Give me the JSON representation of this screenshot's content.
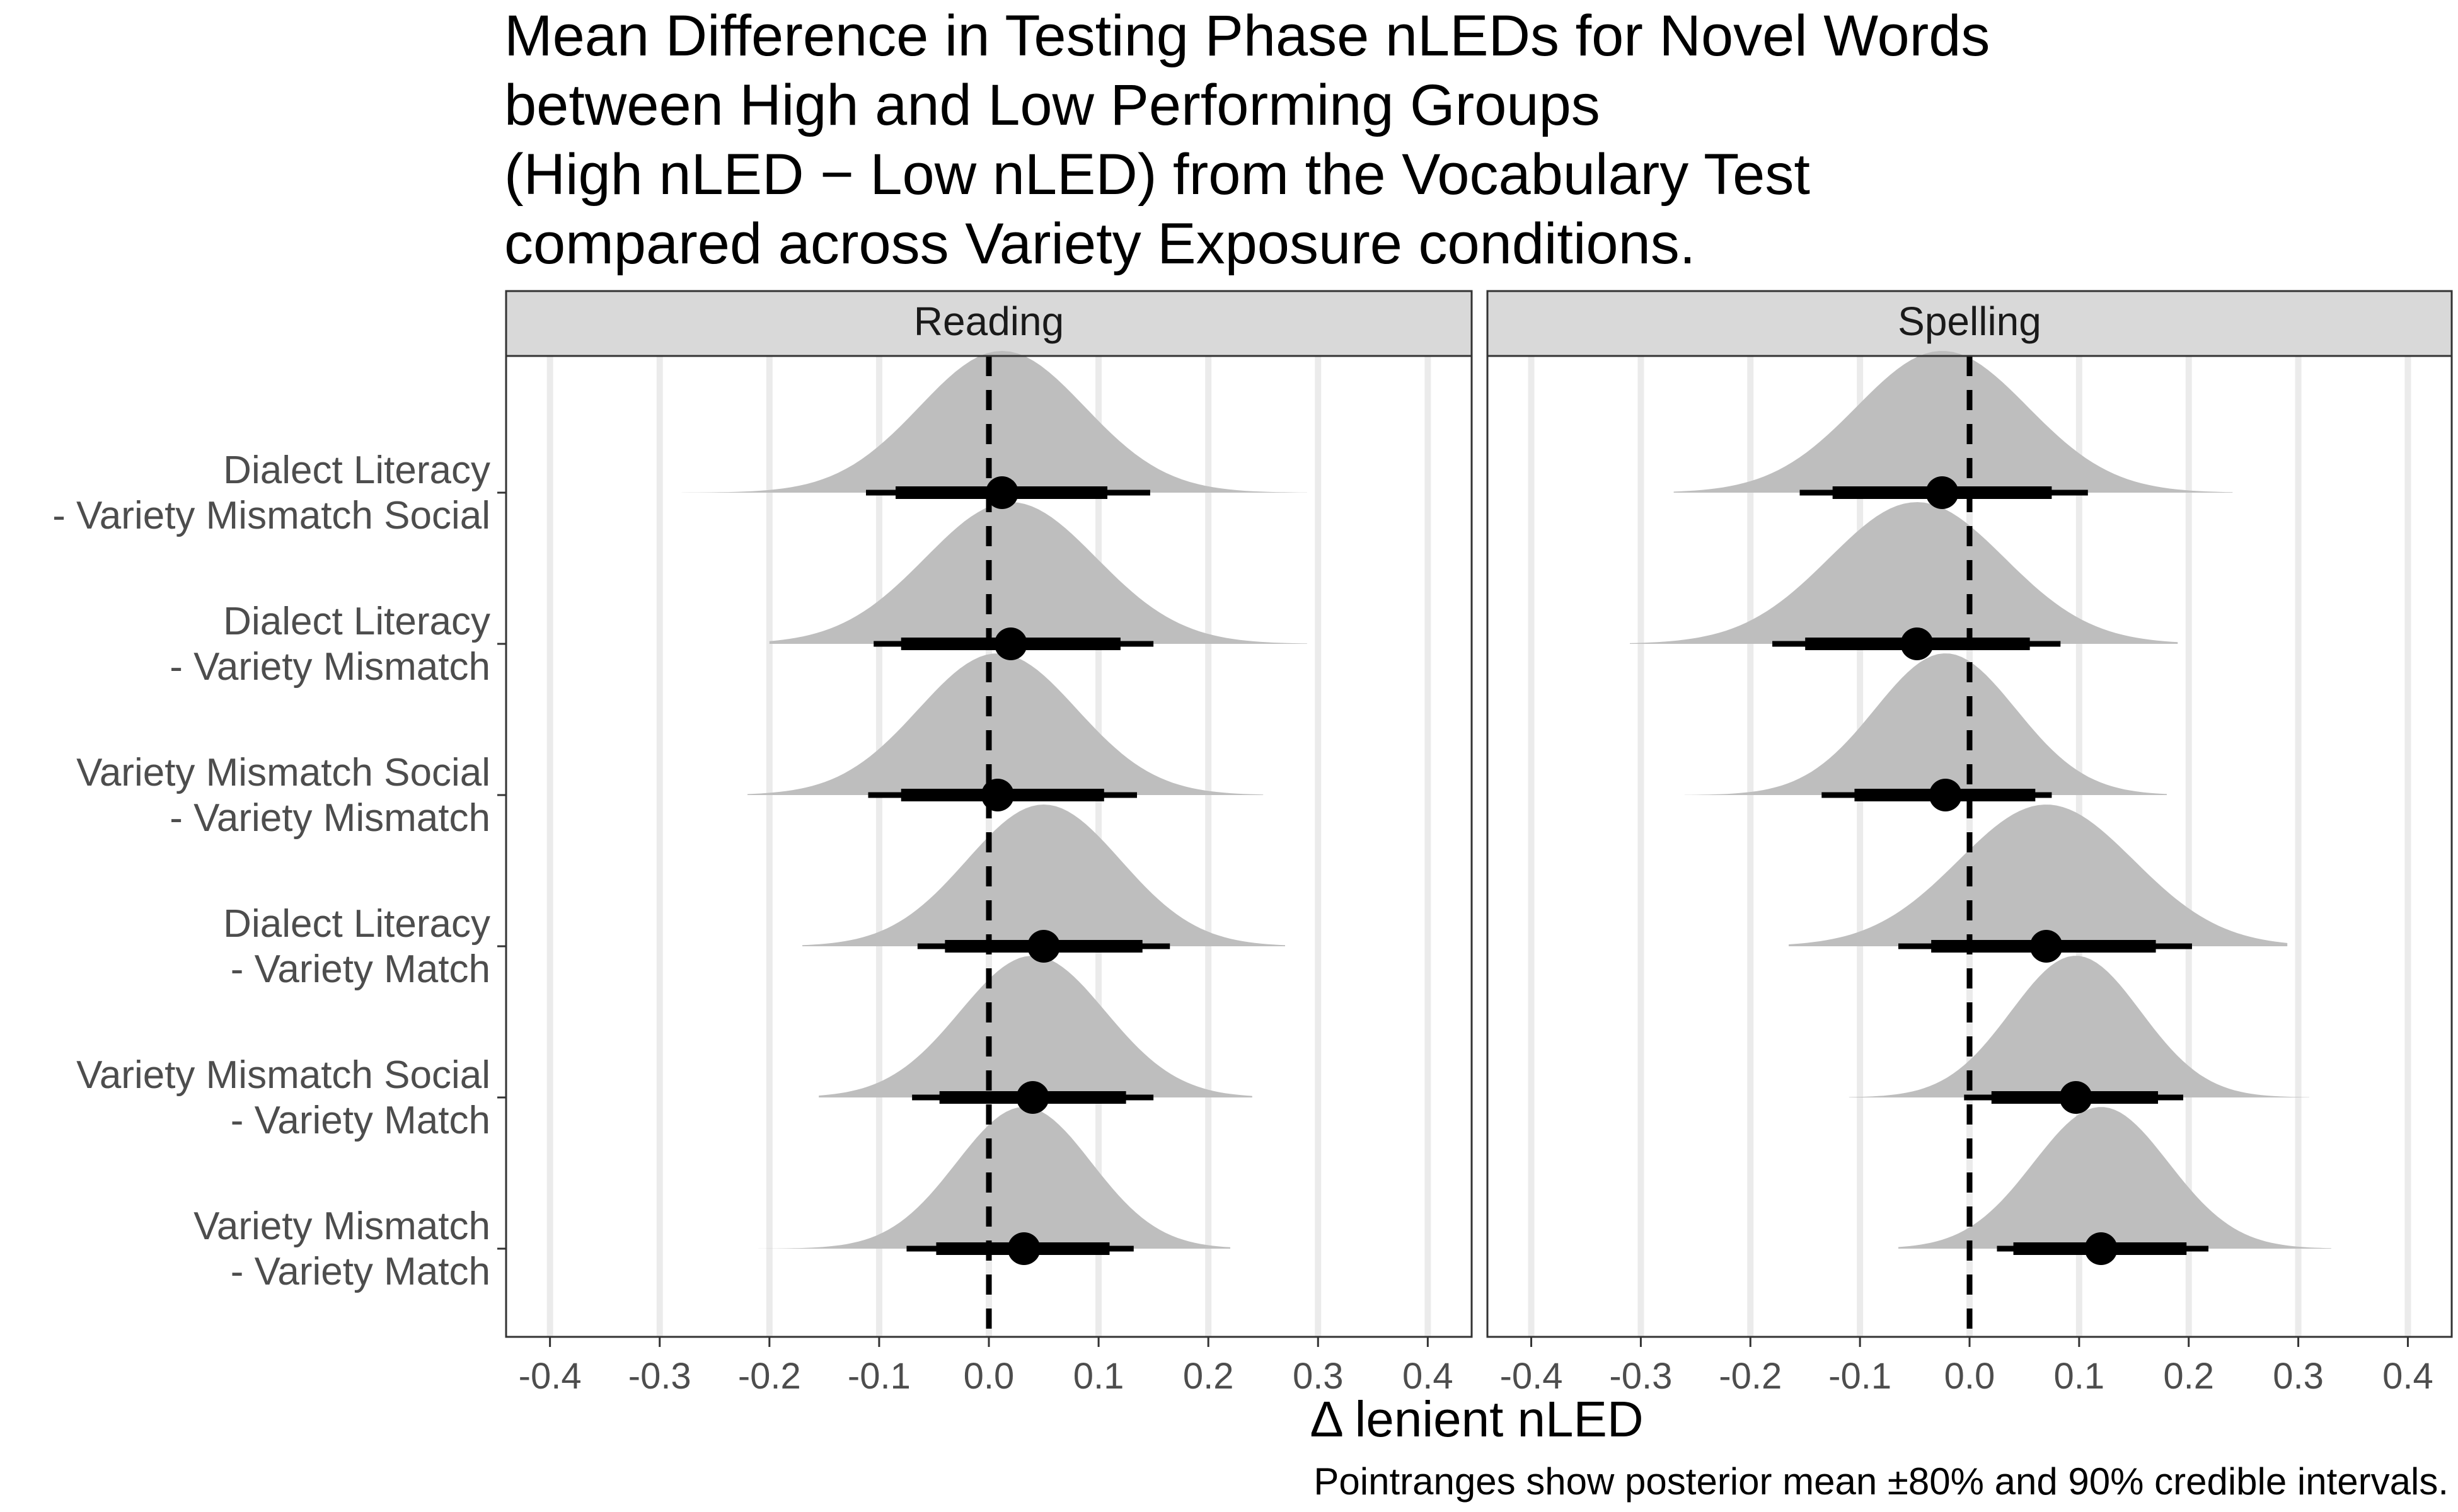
{
  "chart_data": {
    "type": "halfeye",
    "title_lines": [
      "Mean Difference in Testing Phase nLEDs for Novel Words",
      "between High and Low Performing Groups",
      "(High nLED − Low nLED) from the Vocabulary Test",
      "compared across Variety Exposure conditions."
    ],
    "xlabel": "Δ lenient nLED",
    "ylabel": "",
    "caption": "Pointranges show posterior mean ±80% and 90% credible intervals.",
    "xlim": [
      -0.44,
      0.44
    ],
    "x_ticks": [
      -0.4,
      -0.3,
      -0.2,
      -0.1,
      0.0,
      0.1,
      0.2,
      0.3,
      0.4
    ],
    "x_tick_labels": [
      "-0.4",
      "-0.3",
      "-0.2",
      "-0.1",
      "0.0",
      "0.1",
      "0.2",
      "0.3",
      "0.4"
    ],
    "reference_line": 0.0,
    "grid": "vertical major lines",
    "categories": [
      [
        "Dialect Literacy",
        "- Variety Mismatch Social"
      ],
      [
        "Dialect Literacy",
        "- Variety Mismatch"
      ],
      [
        "Variety Mismatch Social",
        "- Variety Mismatch"
      ],
      [
        "Dialect Literacy",
        "- Variety Match"
      ],
      [
        "Variety Mismatch Social",
        "- Variety Match"
      ],
      [
        "Variety Mismatch",
        "- Variety Match"
      ]
    ],
    "panels": [
      {
        "name": "Reading",
        "rows": [
          {
            "mean": 0.012,
            "ci80": [
              -0.085,
              0.108
            ],
            "ci90": [
              -0.112,
              0.147
            ],
            "range": [
              -0.28,
              0.29
            ]
          },
          {
            "mean": 0.02,
            "ci80": [
              -0.08,
              0.12
            ],
            "ci90": [
              -0.105,
              0.15
            ],
            "range": [
              -0.2,
              0.29
            ]
          },
          {
            "mean": 0.008,
            "ci80": [
              -0.08,
              0.105
            ],
            "ci90": [
              -0.11,
              0.135
            ],
            "range": [
              -0.22,
              0.25
            ]
          },
          {
            "mean": 0.05,
            "ci80": [
              -0.04,
              0.14
            ],
            "ci90": [
              -0.065,
              0.165
            ],
            "range": [
              -0.17,
              0.27
            ]
          },
          {
            "mean": 0.04,
            "ci80": [
              -0.045,
              0.125
            ],
            "ci90": [
              -0.07,
              0.15
            ],
            "range": [
              -0.155,
              0.24
            ]
          },
          {
            "mean": 0.032,
            "ci80": [
              -0.048,
              0.11
            ],
            "ci90": [
              -0.075,
              0.132
            ],
            "range": [
              -0.21,
              0.22
            ]
          }
        ]
      },
      {
        "name": "Spelling",
        "rows": [
          {
            "mean": -0.025,
            "ci80": [
              -0.125,
              0.075
            ],
            "ci90": [
              -0.155,
              0.108
            ],
            "range": [
              -0.27,
              0.24
            ]
          },
          {
            "mean": -0.048,
            "ci80": [
              -0.15,
              0.055
            ],
            "ci90": [
              -0.18,
              0.083
            ],
            "range": [
              -0.31,
              0.19
            ]
          },
          {
            "mean": -0.022,
            "ci80": [
              -0.105,
              0.06
            ],
            "ci90": [
              -0.135,
              0.075
            ],
            "range": [
              -0.26,
              0.18
            ]
          },
          {
            "mean": 0.07,
            "ci80": [
              -0.035,
              0.17
            ],
            "ci90": [
              -0.065,
              0.203
            ],
            "range": [
              -0.165,
              0.29
            ]
          },
          {
            "mean": 0.097,
            "ci80": [
              0.02,
              0.172
            ],
            "ci90": [
              -0.005,
              0.195
            ],
            "range": [
              -0.11,
              0.31
            ]
          },
          {
            "mean": 0.12,
            "ci80": [
              0.04,
              0.198
            ],
            "ci90": [
              0.025,
              0.218
            ],
            "range": [
              -0.065,
              0.33
            ]
          }
        ]
      }
    ],
    "colors": {
      "density": "#bebebe",
      "point": "#000000",
      "strip": "#d9d9d9",
      "grid": "#ebebeb",
      "text": "#000000",
      "axis_text": "#4d4d4d"
    }
  }
}
